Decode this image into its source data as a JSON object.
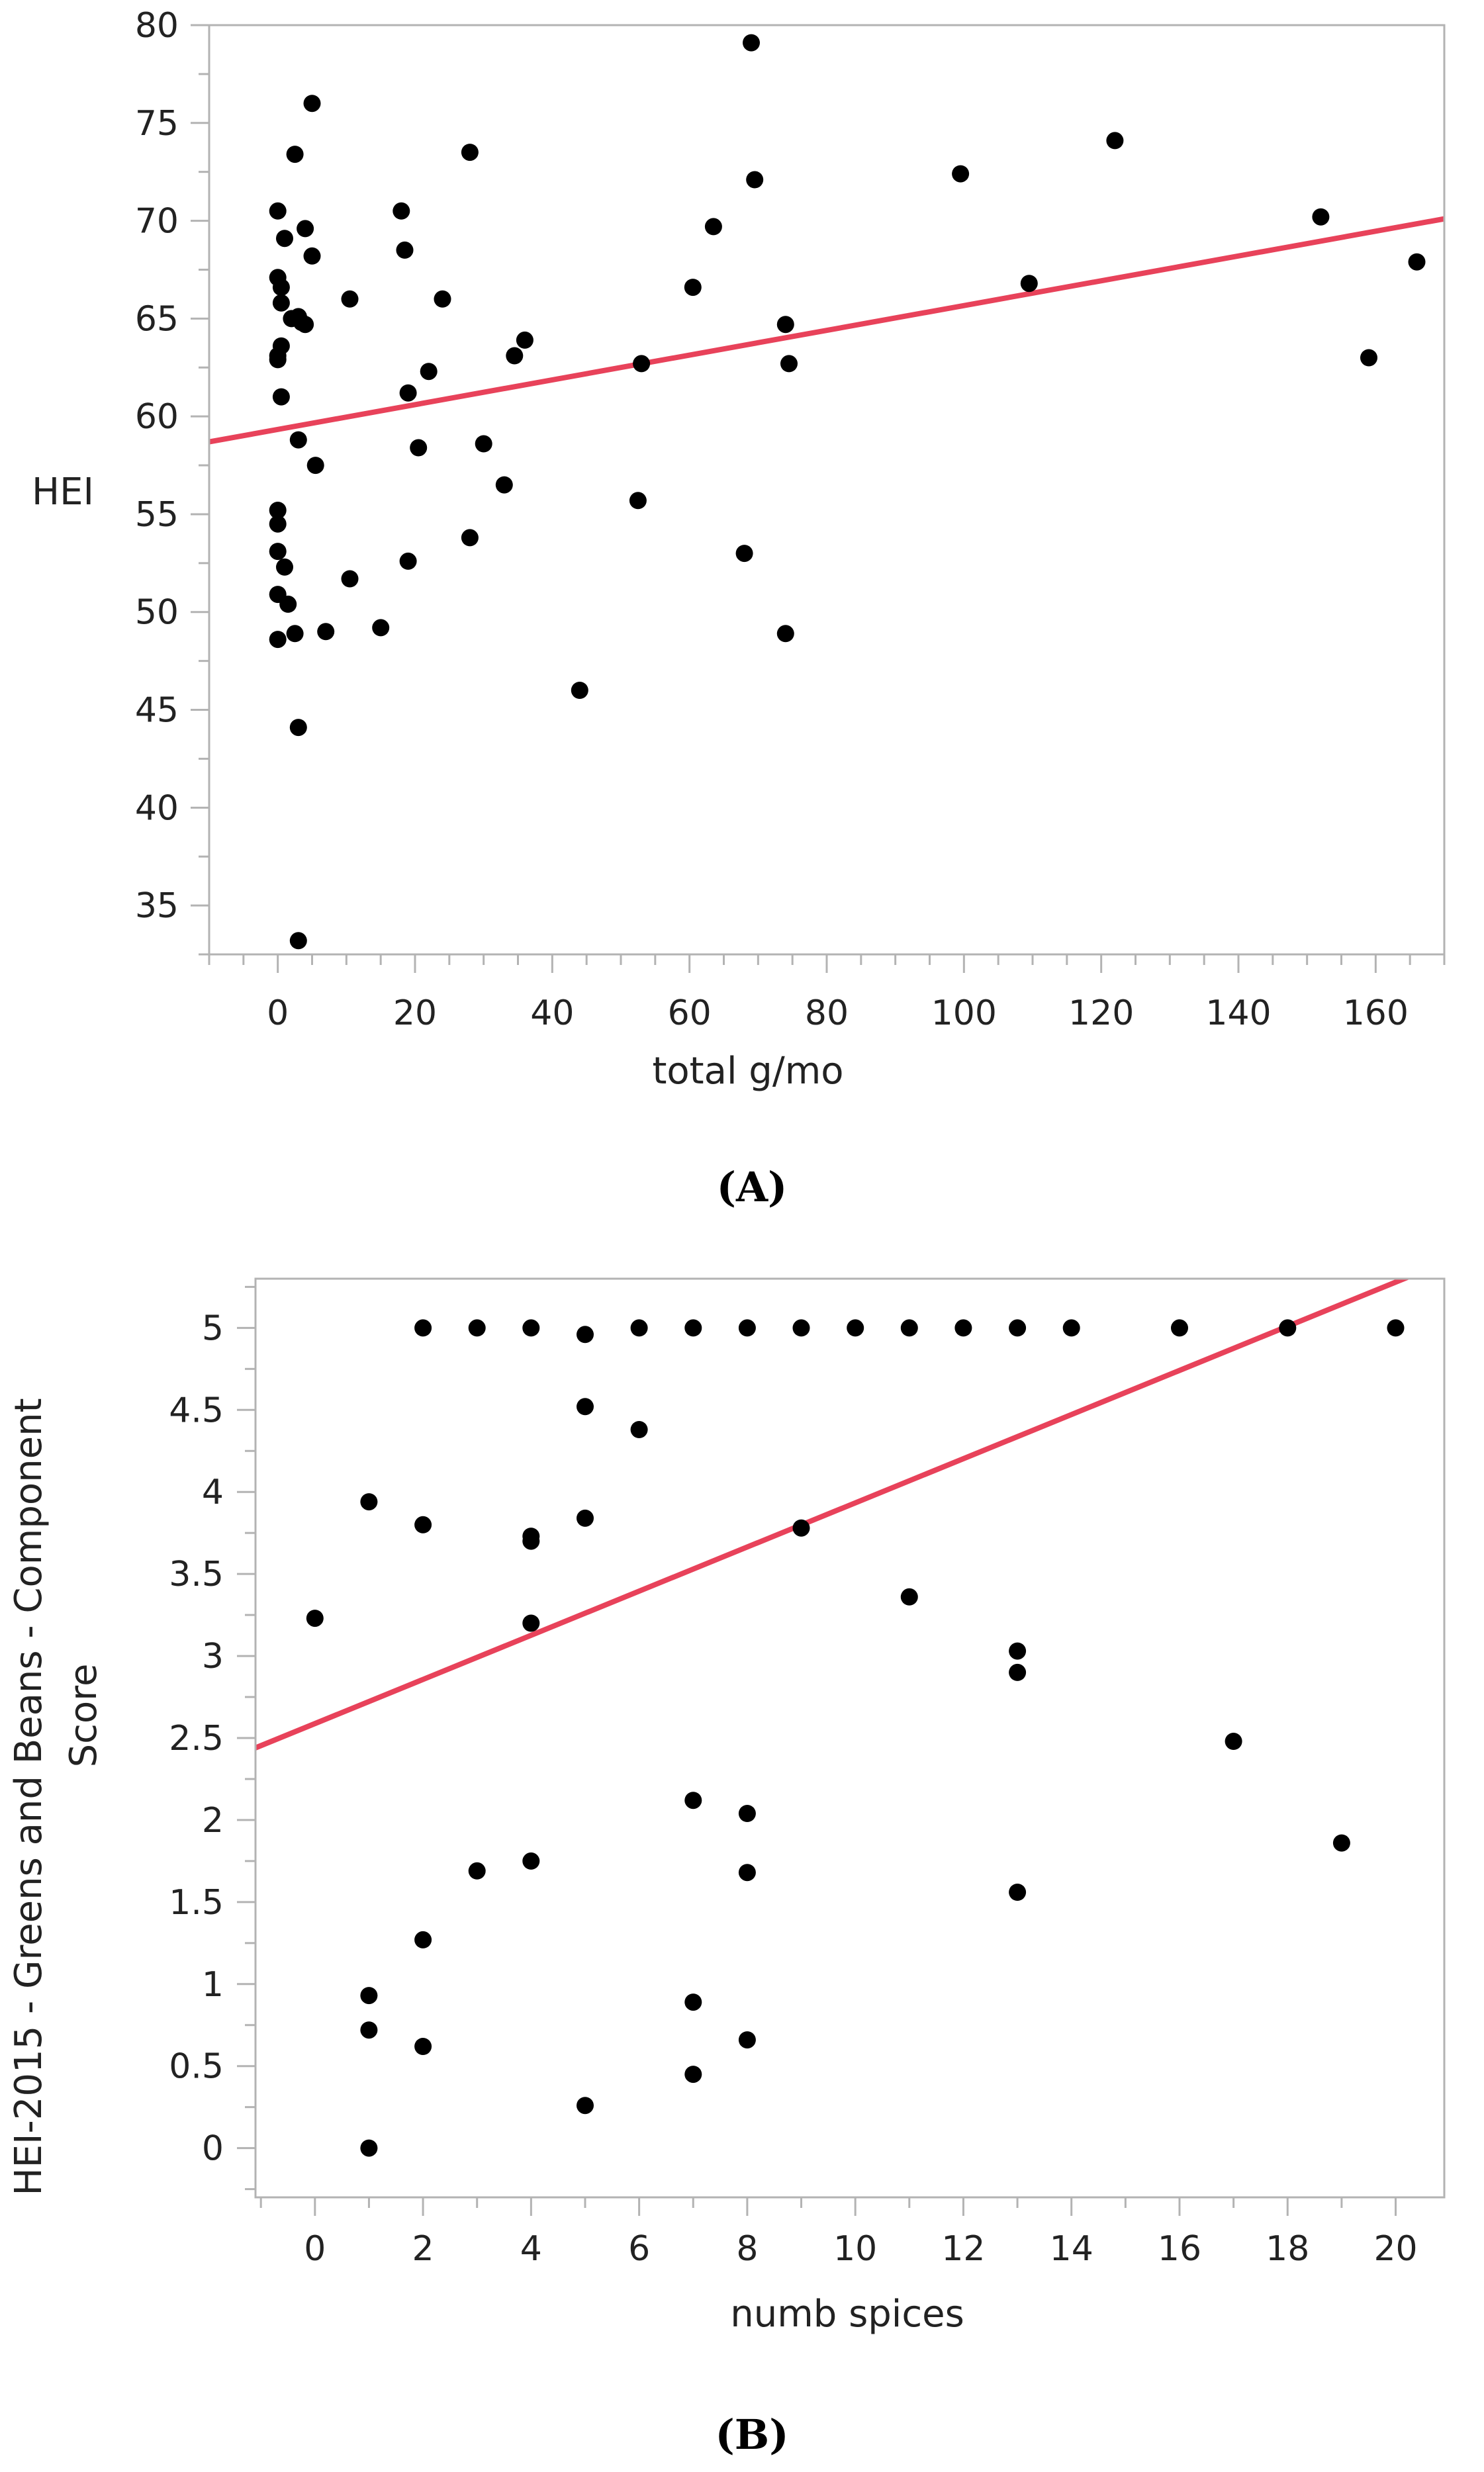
{
  "chart_data": [
    {
      "panel": "A",
      "panel_label": "(A)",
      "type": "scatter",
      "xlabel": "total g/mo",
      "ylabel": "HEI",
      "xlim": [
        -10,
        170
      ],
      "ylim": [
        32.5,
        80
      ],
      "xticks": [
        0,
        20,
        40,
        60,
        80,
        100,
        120,
        140,
        160
      ],
      "yticks": [
        35,
        40,
        45,
        50,
        55,
        60,
        65,
        70,
        75,
        80
      ],
      "x_minor_step": 5,
      "y_minor_step": 2.5,
      "fit_line": {
        "x": [
          -10,
          170
        ],
        "y": [
          58.7,
          70.1
        ]
      },
      "points": [
        [
          0,
          70.5
        ],
        [
          0,
          67.1
        ],
        [
          0.5,
          66.6
        ],
        [
          0.5,
          65.8
        ],
        [
          0,
          63.1
        ],
        [
          0,
          62.9
        ],
        [
          0.5,
          63.6
        ],
        [
          1,
          69.1
        ],
        [
          0.5,
          61.0
        ],
        [
          0,
          55.2
        ],
        [
          0,
          54.5
        ],
        [
          0,
          53.1
        ],
        [
          1,
          52.3
        ],
        [
          0,
          50.9
        ],
        [
          0,
          48.6
        ],
        [
          1.5,
          50.4
        ],
        [
          2,
          65.0
        ],
        [
          2.5,
          48.9
        ],
        [
          2.5,
          73.4
        ],
        [
          3,
          65.1
        ],
        [
          3,
          58.8
        ],
        [
          3,
          44.1
        ],
        [
          3,
          33.2
        ],
        [
          3.5,
          64.8
        ],
        [
          4,
          69.6
        ],
        [
          4,
          64.7
        ],
        [
          5,
          76.0
        ],
        [
          5,
          68.2
        ],
        [
          5.5,
          57.5
        ],
        [
          7,
          49.0
        ],
        [
          10.5,
          66.0
        ],
        [
          10.5,
          51.7
        ],
        [
          15,
          49.2
        ],
        [
          18,
          70.5
        ],
        [
          18.5,
          68.5
        ],
        [
          19,
          61.2
        ],
        [
          19,
          52.6
        ],
        [
          20.5,
          58.4
        ],
        [
          22,
          62.3
        ],
        [
          24,
          66.0
        ],
        [
          28,
          73.5
        ],
        [
          28,
          53.8
        ],
        [
          30,
          58.6
        ],
        [
          33,
          56.5
        ],
        [
          34.5,
          63.1
        ],
        [
          36,
          63.9
        ],
        [
          44,
          46.0
        ],
        [
          52.5,
          55.7
        ],
        [
          53,
          62.7
        ],
        [
          60.5,
          66.6
        ],
        [
          63.5,
          69.7
        ],
        [
          68,
          53.0
        ],
        [
          69,
          79.1
        ],
        [
          69.5,
          72.1
        ],
        [
          74,
          64.7
        ],
        [
          74,
          48.9
        ],
        [
          74.5,
          62.7
        ],
        [
          99.5,
          72.4
        ],
        [
          109.5,
          66.8
        ],
        [
          122,
          74.1
        ],
        [
          152,
          70.2
        ],
        [
          159,
          63.0
        ],
        [
          166,
          67.9
        ]
      ]
    },
    {
      "panel": "B",
      "panel_label": "(B)",
      "type": "scatter",
      "xlabel": "numb spices",
      "ylabel": "HEI-2015 - Greens and Beans - Component Score",
      "ylabel_lines": [
        "HEI-2015 - Greens and Beans - Component",
        "Score"
      ],
      "xlim": [
        -1.1,
        20.9
      ],
      "ylim": [
        -0.3,
        5.3
      ],
      "xticks": [
        0,
        2,
        4,
        6,
        8,
        10,
        12,
        14,
        16,
        18,
        20
      ],
      "yticks": [
        0,
        0.5,
        1,
        1.5,
        2,
        2.5,
        3,
        3.5,
        4,
        4.5,
        5
      ],
      "x_minor_step": 1,
      "y_minor_step": 0.25,
      "fit_line": {
        "x": [
          -1.1,
          20.9
        ],
        "y": [
          2.44,
          5.4
        ]
      },
      "points": [
        [
          0,
          3.23
        ],
        [
          1,
          3.94
        ],
        [
          1,
          0.93
        ],
        [
          1,
          0.72
        ],
        [
          1,
          0.0
        ],
        [
          2,
          5.0
        ],
        [
          2,
          3.8
        ],
        [
          2,
          1.27
        ],
        [
          2,
          0.62
        ],
        [
          3,
          5.0
        ],
        [
          3,
          1.69
        ],
        [
          4,
          5.0
        ],
        [
          4,
          3.73
        ],
        [
          4,
          3.7
        ],
        [
          4,
          3.2
        ],
        [
          4,
          1.75
        ],
        [
          5,
          4.96
        ],
        [
          5,
          4.52
        ],
        [
          5,
          3.84
        ],
        [
          5,
          0.26
        ],
        [
          6,
          5.0
        ],
        [
          6,
          4.38
        ],
        [
          7,
          5.0
        ],
        [
          7,
          2.12
        ],
        [
          7,
          0.89
        ],
        [
          7,
          0.45
        ],
        [
          8,
          5.0
        ],
        [
          8,
          2.04
        ],
        [
          8,
          1.68
        ],
        [
          8,
          0.66
        ],
        [
          9,
          5.0
        ],
        [
          9,
          3.78
        ],
        [
          10,
          5.0
        ],
        [
          11,
          5.0
        ],
        [
          11,
          3.36
        ],
        [
          12,
          5.0
        ],
        [
          13,
          5.0
        ],
        [
          13,
          3.03
        ],
        [
          13,
          2.9
        ],
        [
          13,
          1.56
        ],
        [
          14,
          5.0
        ],
        [
          16,
          5.0
        ],
        [
          17,
          2.48
        ],
        [
          18,
          5.0
        ],
        [
          19,
          1.86
        ],
        [
          20,
          5.0
        ]
      ]
    }
  ]
}
